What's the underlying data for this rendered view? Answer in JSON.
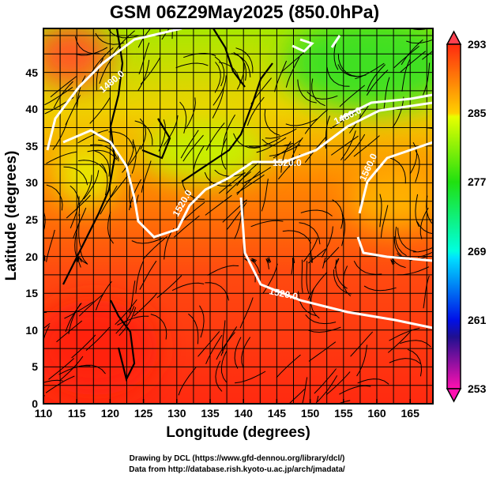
{
  "title": "GSM 06Z29May2025 (850.0hPa)",
  "x_axis": {
    "label": "Longitude (degrees)",
    "ticks": [
      "110",
      "115",
      "120",
      "125",
      "130",
      "135",
      "140",
      "145",
      "150",
      "155",
      "160",
      "165"
    ]
  },
  "y_axis": {
    "label": "Latitude  (degrees)",
    "ticks": [
      "0",
      "5",
      "10",
      "15",
      "20",
      "25",
      "30",
      "35",
      "40",
      "45"
    ]
  },
  "colorbar": {
    "ticks": [
      "293",
      "285",
      "277",
      "269",
      "261",
      "253"
    ],
    "colors": [
      "#ff3a1a",
      "#ff9a00",
      "#e8ff00",
      "#22e000",
      "#00ffd0",
      "#00b4ff",
      "#0010e0",
      "#500090",
      "#ff10b0"
    ]
  },
  "contour_labels": [
    "1480.0",
    "1520.0",
    "1520.0",
    "1560.0",
    "1520.0",
    "1480.0"
  ],
  "credits": [
    "Drawing by DCL (https://www.gfd-dennou.org/library/dcl/)",
    "Data from http://database.rish.kyoto-u.ac.jp/arch/jmadata/"
  ]
}
